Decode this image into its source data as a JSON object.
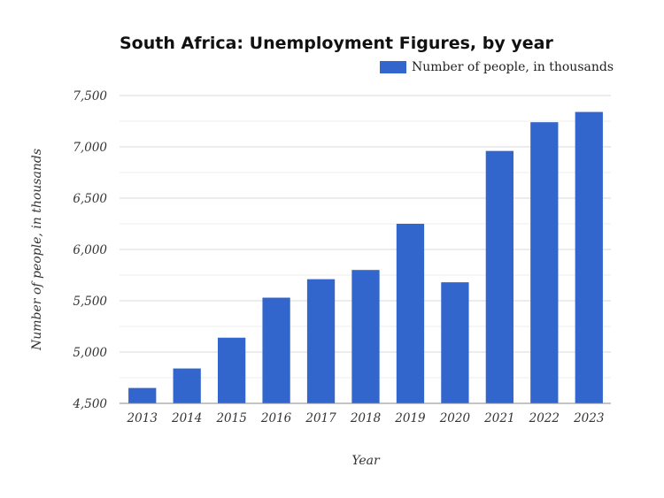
{
  "chart_data": {
    "type": "bar",
    "title": "South Africa: Unemployment Figures, by year",
    "xlabel": "Year",
    "ylabel": "Number of people, in thousands",
    "legend_position": "top-right",
    "grid": true,
    "ylim": [
      4500,
      7500
    ],
    "yticks": [
      "4,500",
      "5,000",
      "5,500",
      "6,000",
      "6,500",
      "7,000",
      "7,500"
    ],
    "yticks_values": [
      4500,
      5000,
      5500,
      6000,
      6500,
      7000,
      7500
    ],
    "categories": [
      "2013",
      "2014",
      "2015",
      "2016",
      "2017",
      "2018",
      "2019",
      "2020",
      "2021",
      "2022",
      "2023"
    ],
    "series": [
      {
        "name": "Number of people, in thousands",
        "color": "#3366cc",
        "values": [
          4650,
          4840,
          5140,
          5530,
          5710,
          5800,
          6250,
          5680,
          6960,
          7240,
          7340
        ]
      }
    ]
  }
}
